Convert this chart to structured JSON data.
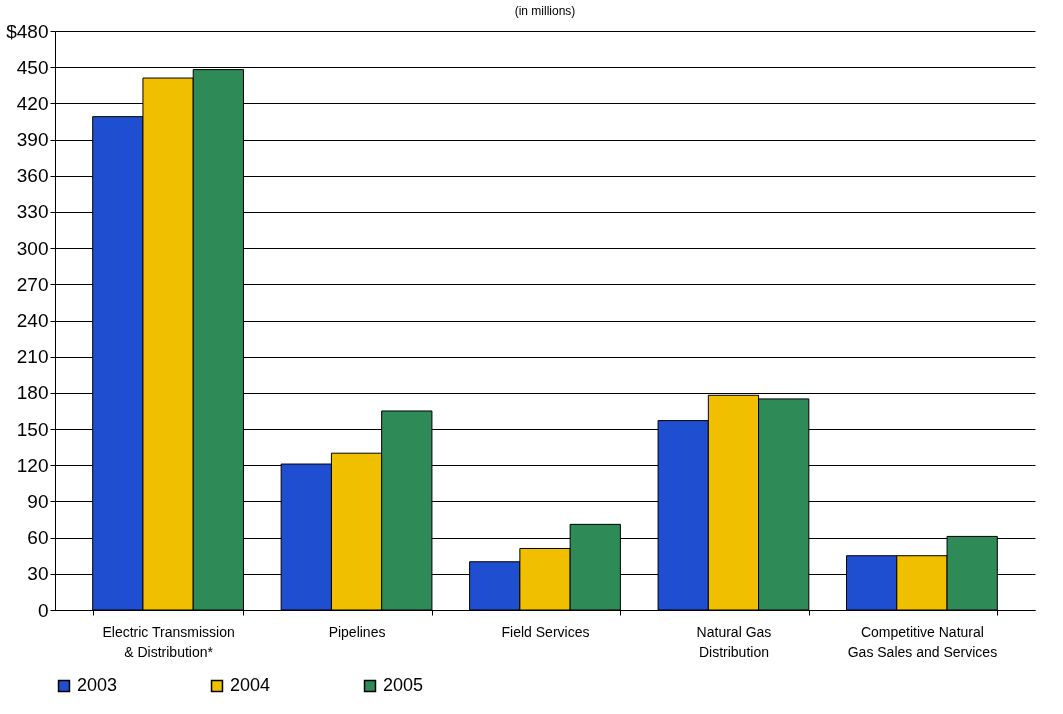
{
  "chart_data": {
    "type": "bar",
    "title": "(in millions)",
    "categories": [
      "Electric Transmission & Distribution*",
      "Pipelines",
      "Field Services",
      "Natural Gas Distribution",
      "Competitive Natural Gas Sales and Services"
    ],
    "series": [
      {
        "name": "2003",
        "color": "#1f4fd0",
        "values": [
          409,
          121,
          40,
          157,
          45
        ]
      },
      {
        "name": "2004",
        "color": "#f0c000",
        "values": [
          441,
          130,
          51,
          178,
          45
        ]
      },
      {
        "name": "2005",
        "color": "#2e8b57",
        "values": [
          448,
          165,
          71,
          175,
          61
        ]
      }
    ],
    "ylim": [
      0,
      480
    ],
    "yticks": [
      0,
      30,
      60,
      90,
      120,
      150,
      180,
      210,
      240,
      270,
      300,
      330,
      360,
      390,
      420,
      450,
      {
        "value": 480,
        "label": "$480"
      }
    ],
    "grid": "y",
    "legend": "bottom"
  }
}
